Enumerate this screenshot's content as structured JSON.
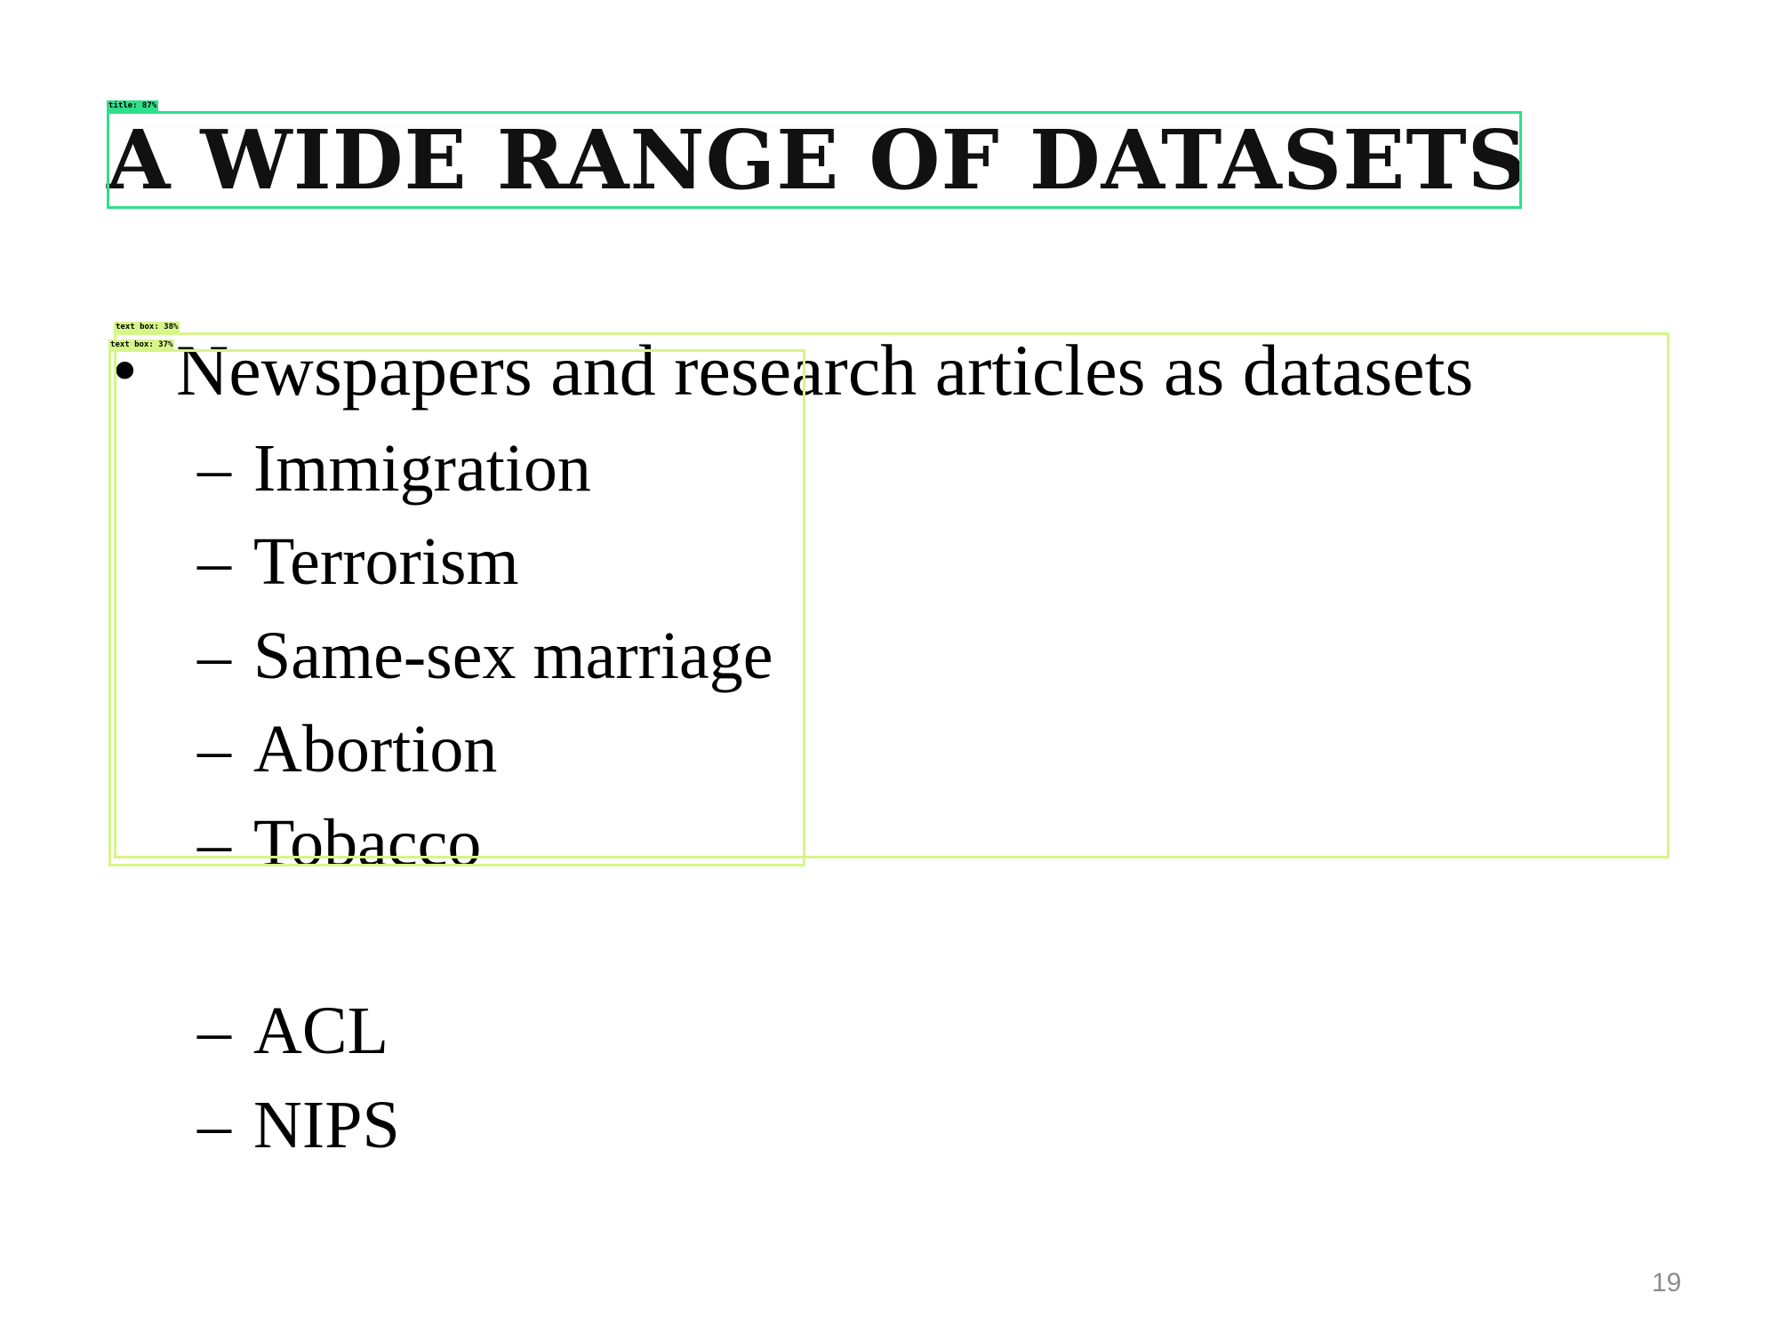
{
  "slide": {
    "title": "A WIDE RANGE OF DATASETS",
    "bullet": {
      "marker": "•",
      "text": "Newspapers and research articles as datasets"
    },
    "sub_marker": "–",
    "sub_items": [
      "Immigration",
      "Terrorism",
      "Same-sex marriage",
      "Abortion",
      "Tobacco",
      "ACL",
      "NIPS"
    ],
    "page_number": "19"
  },
  "annotations": [
    {
      "label": "title: 87%",
      "color": "#2ee08a"
    },
    {
      "label": "text box: 38%",
      "color": "#d6f58a"
    },
    {
      "label": "text box: 37%",
      "color": "#d6f58a"
    }
  ]
}
